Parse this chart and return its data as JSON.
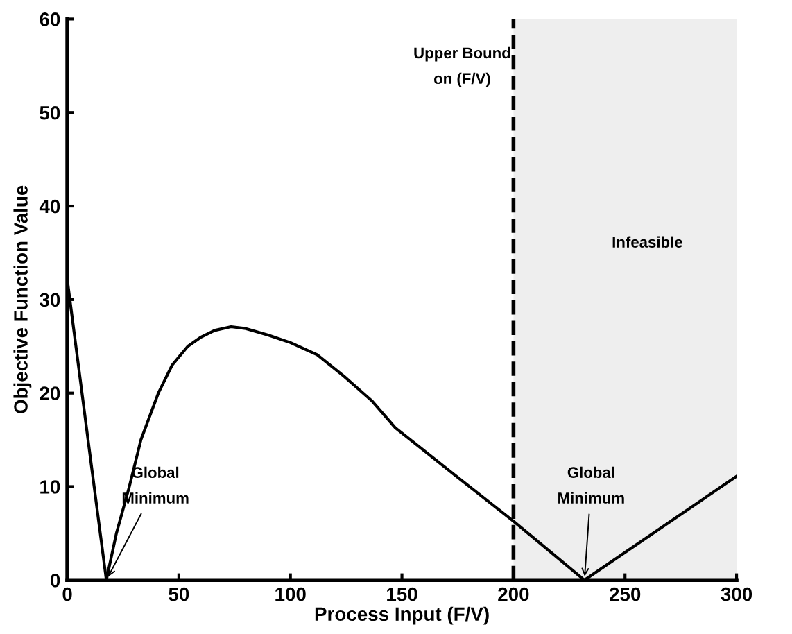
{
  "chart_data": {
    "type": "line",
    "xlabel": "Process Input (F/V)",
    "ylabel": "Objective Function Value",
    "x": [
      0,
      5,
      10,
      17.5,
      22,
      27.8,
      33,
      40.8,
      47,
      54,
      60,
      66,
      73.4,
      80,
      90,
      100,
      112,
      124,
      136.4,
      147,
      175,
      200,
      231.8,
      300
    ],
    "series": [
      {
        "color": "#000000",
        "values": [
          32.1,
          22.9,
          13.7,
          0,
          5,
          10,
          15,
          20,
          23,
          25,
          26,
          26.7,
          27.1,
          26.9,
          26.2,
          25.4,
          24.1,
          21.8,
          19.2,
          16.3,
          11,
          6.3,
          0,
          11.1
        ]
      }
    ],
    "xlim": [
      0,
      300
    ],
    "ylim": [
      0,
      60
    ],
    "xticks": [
      0,
      50,
      100,
      150,
      200,
      250,
      300
    ],
    "yticks": [
      0,
      10,
      20,
      30,
      40,
      50,
      60
    ],
    "grid": false,
    "legend": false,
    "marker": "none",
    "line_style": "solid",
    "ref_lines": [
      {
        "axis": "x",
        "value": 200,
        "label": "Upper Bound\non (F/V)",
        "color": "#000000",
        "line_style": "dashed"
      }
    ],
    "bands": [
      {
        "axis": "x",
        "from": 200,
        "to": 300,
        "label": "Infeasible",
        "color": "#eeeeee"
      }
    ],
    "annotations": [
      {
        "text": "Global\nMinimum",
        "x": 17.5,
        "y": 0
      },
      {
        "text": "Global\nMinimum",
        "x": 231.8,
        "y": 0
      }
    ]
  }
}
